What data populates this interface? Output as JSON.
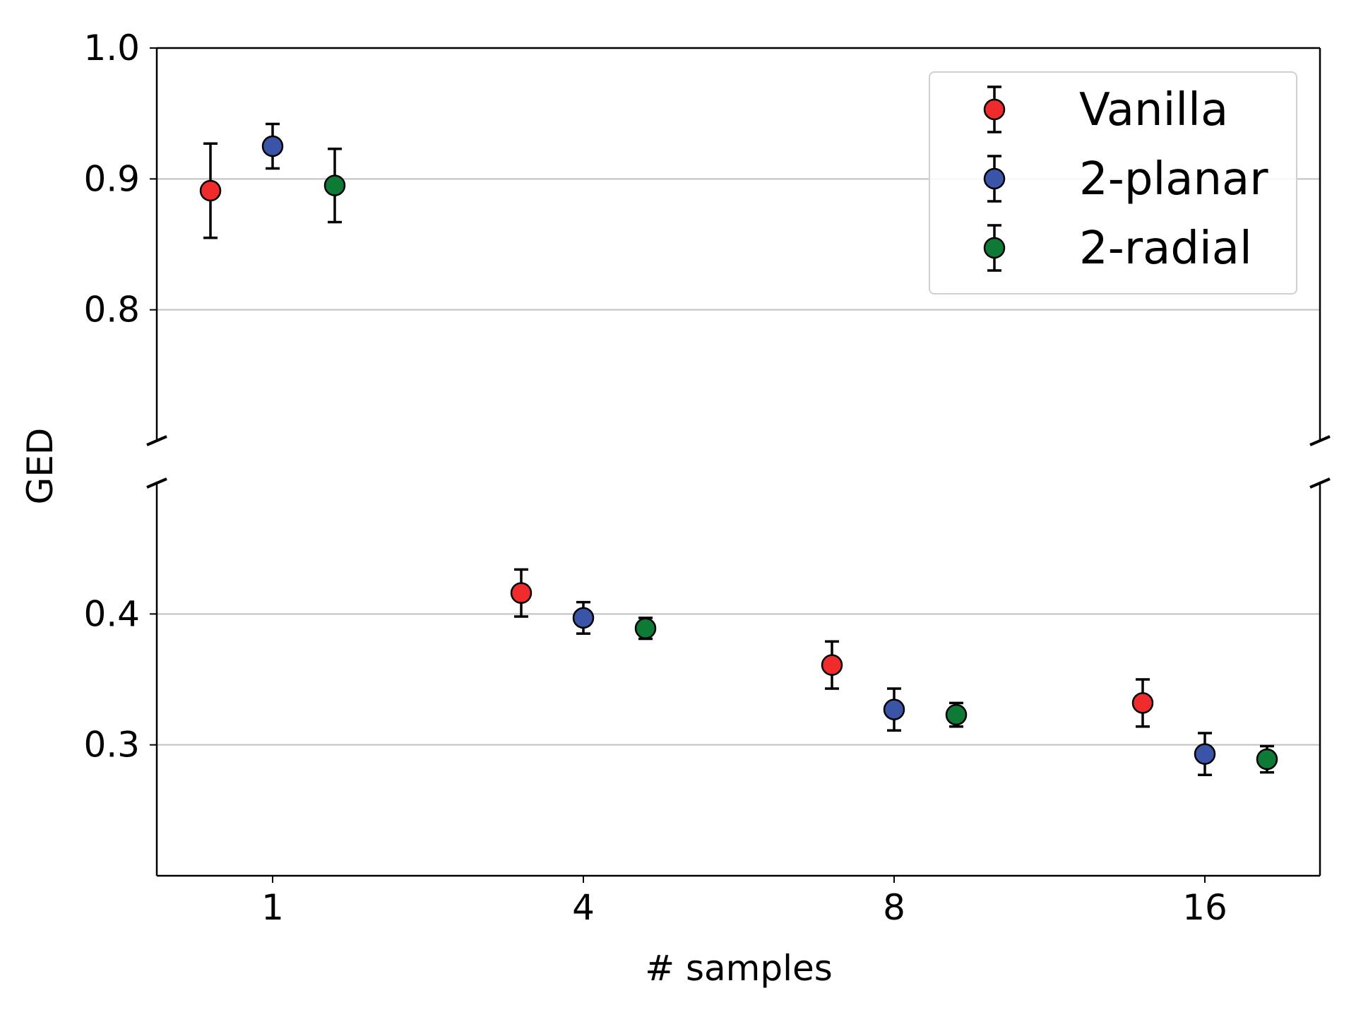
{
  "chart_data": {
    "type": "scatter",
    "subtype": "errorbar-broken-axis",
    "title": "",
    "xlabel": "# samples",
    "ylabel": "GED",
    "x_ticks": [
      "1",
      "4",
      "8",
      "16"
    ],
    "y_ticks_upper": [
      "0.8",
      "0.9",
      "1.0"
    ],
    "y_ticks_lower": [
      "0.3",
      "0.4"
    ],
    "ylim_upper": [
      0.7,
      1.0
    ],
    "ylim_lower": [
      0.2,
      0.5
    ],
    "grid": "horizontal",
    "legend_position": "top-right",
    "series": [
      {
        "name": "Vanilla",
        "color": "#ef2b2b",
        "offset": -0.8,
        "values": [
          0.891,
          0.416,
          0.361,
          0.332
        ],
        "errors": [
          0.036,
          0.018,
          0.018,
          0.018
        ]
      },
      {
        "name": "2-planar",
        "color": "#3a54a8",
        "offset": 0,
        "values": [
          0.925,
          0.397,
          0.327,
          0.293
        ],
        "errors": [
          0.017,
          0.012,
          0.016,
          0.016
        ]
      },
      {
        "name": "2-radial",
        "color": "#0d7a35",
        "offset": 0.8,
        "values": [
          0.895,
          0.389,
          0.323,
          0.289
        ],
        "errors": [
          0.028,
          0.008,
          0.009,
          0.01
        ]
      }
    ]
  }
}
